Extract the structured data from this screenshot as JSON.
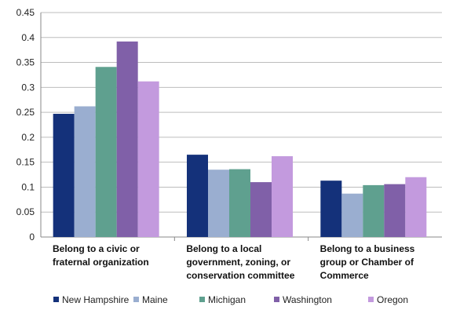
{
  "chart_data": {
    "type": "bar",
    "categories": [
      [
        "Belong to a civic or",
        "fraternal organization"
      ],
      [
        "Belong to a local",
        "government, zoning, or",
        "conservation committee"
      ],
      [
        "Belong to a business",
        "group or Chamber of",
        "Commerce"
      ]
    ],
    "series": [
      {
        "name": "New Hampshire",
        "color": "#14317a",
        "values": [
          0.247,
          0.165,
          0.113
        ]
      },
      {
        "name": "Maine",
        "color": "#9aaed0",
        "values": [
          0.262,
          0.135,
          0.087
        ]
      },
      {
        "name": "Michigan",
        "color": "#5fa08f",
        "values": [
          0.341,
          0.136,
          0.104
        ]
      },
      {
        "name": "Washington",
        "color": "#8060a8",
        "values": [
          0.392,
          0.11,
          0.106
        ]
      },
      {
        "name": "Oregon",
        "color": "#c39ade",
        "values": [
          0.312,
          0.162,
          0.12
        ]
      }
    ],
    "y_ticks": [
      "0",
      "0.05",
      "0.1",
      "0.15",
      "0.2",
      "0.25",
      "0.3",
      "0.35",
      "0.4",
      "0.45"
    ],
    "ylim": [
      0,
      0.45
    ],
    "grid": true,
    "legend_position": "bottom",
    "title": "",
    "xlabel": "",
    "ylabel": ""
  }
}
